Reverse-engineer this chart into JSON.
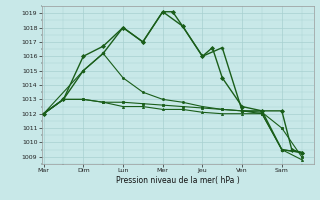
{
  "background_color": "#c8e8e8",
  "grid_color": "#a8d0d0",
  "line_color": "#1a5e1a",
  "xlabel": "Pression niveau de la mer( hPa )",
  "ylim": [
    1008.5,
    1019.5
  ],
  "yticks": [
    1009,
    1010,
    1011,
    1012,
    1013,
    1014,
    1015,
    1016,
    1017,
    1018,
    1019
  ],
  "days": [
    "Mar",
    "Dim",
    "Lun",
    "Mer",
    "Jeu",
    "Ven",
    "Sam"
  ],
  "day_positions": [
    0,
    1,
    2,
    3,
    4,
    5,
    6
  ],
  "xlim": [
    -0.05,
    6.8
  ],
  "series": [
    {
      "x": [
        0.0,
        0.5,
        1.0,
        1.5,
        2.0,
        2.5,
        3.0,
        3.25,
        3.5,
        4.0,
        4.25,
        4.5,
        5.0,
        5.5,
        6.0,
        6.25,
        6.5
      ],
      "y": [
        1012,
        1013,
        1016,
        1016.7,
        1018,
        1017,
        1019.1,
        1019.1,
        1018.1,
        1016,
        1016.6,
        1014.5,
        1012.5,
        1012.2,
        1012.2,
        1009.5,
        1009.3
      ],
      "marker": "D",
      "markersize": 2.0,
      "linewidth": 1.0
    },
    {
      "x": [
        0.0,
        0.5,
        1.0,
        1.5,
        2.0,
        2.5,
        3.0,
        3.5,
        4.0,
        4.5,
        5.0,
        5.5,
        6.0,
        6.5
      ],
      "y": [
        1012,
        1013,
        1015,
        1016.2,
        1018,
        1017,
        1019.1,
        1018.1,
        1016,
        1016.6,
        1012.2,
        1012.2,
        1009.5,
        1009.3
      ],
      "marker": "P",
      "markersize": 2.0,
      "linewidth": 1.0
    },
    {
      "x": [
        0.0,
        1.0,
        1.5,
        2.0,
        2.5,
        3.0,
        3.5,
        4.0,
        4.5,
        5.0,
        5.5,
        6.0,
        6.5
      ],
      "y": [
        1012,
        1015,
        1016.2,
        1014.5,
        1013.5,
        1013.0,
        1012.8,
        1012.5,
        1012.3,
        1012.2,
        1012.0,
        1009.5,
        1009.3
      ],
      "marker": "o",
      "markersize": 1.5,
      "linewidth": 0.8
    },
    {
      "x": [
        0.0,
        0.5,
        1.0,
        1.5,
        2.0,
        2.5,
        3.0,
        3.5,
        4.0,
        4.5,
        5.0,
        5.5,
        6.0,
        6.5
      ],
      "y": [
        1012,
        1013,
        1013,
        1012.8,
        1012.8,
        1012.7,
        1012.6,
        1012.5,
        1012.4,
        1012.3,
        1012.2,
        1012.1,
        1011.0,
        1009.0
      ],
      "marker": "s",
      "markersize": 1.5,
      "linewidth": 0.8
    },
    {
      "x": [
        0.0,
        0.5,
        1.0,
        1.5,
        2.0,
        2.5,
        3.0,
        3.5,
        4.0,
        4.5,
        5.0,
        5.5,
        6.0,
        6.5
      ],
      "y": [
        1012,
        1013,
        1013,
        1012.8,
        1012.5,
        1012.5,
        1012.3,
        1012.3,
        1012.1,
        1012.0,
        1012.0,
        1012.0,
        1009.5,
        1008.8
      ],
      "marker": "^",
      "markersize": 1.5,
      "linewidth": 0.8
    }
  ]
}
